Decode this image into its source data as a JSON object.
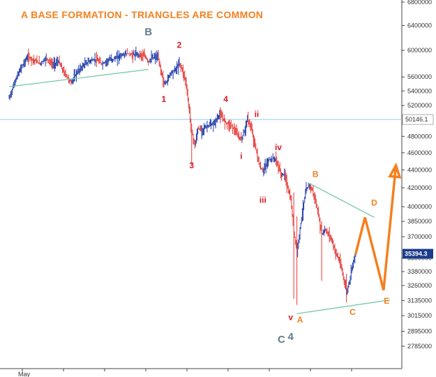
{
  "chart_data": {
    "type": "line",
    "title": "A BASE FORMATION - TRIANGLES ARE COMMON",
    "x_tick_label": "May",
    "y_scale": "log",
    "ylim": [
      27000,
      68000
    ],
    "y_ticks": [
      68000,
      64000,
      60000,
      56000,
      54000,
      52000,
      48000,
      46000,
      44000,
      42000,
      40000,
      38500,
      37000,
      35000,
      33800,
      32600,
      31350,
      30150,
      28950,
      27850
    ],
    "price_label": "50146.1",
    "price_label_value": 50146.1,
    "current_price_label": "35394.3",
    "current_price_value": 35394.3,
    "colors": {
      "title": "#f4801f",
      "up_bar": "#1f3aa8",
      "down_bar": "#e53935",
      "trendline": "#7ecbb0",
      "projection": "#f4801f",
      "red_label": "#d81b24",
      "orange_label": "#f4801f",
      "gray_label": "#607d8b",
      "price_line": "#90caf9",
      "current_price_bg": "#1a3c8c"
    },
    "price_path": [
      [
        0,
        53000
      ],
      [
        2,
        55500
      ],
      [
        4,
        57500
      ],
      [
        6,
        59000
      ],
      [
        8,
        58500
      ],
      [
        10,
        58000
      ],
      [
        12,
        58800
      ],
      [
        14,
        57800
      ],
      [
        16,
        58300
      ],
      [
        17,
        57200
      ],
      [
        18,
        56500
      ],
      [
        20,
        55200
      ],
      [
        22,
        56700
      ],
      [
        24,
        57700
      ],
      [
        26,
        58400
      ],
      [
        28,
        58600
      ],
      [
        30,
        57900
      ],
      [
        32,
        58500
      ],
      [
        34,
        58700
      ],
      [
        36,
        59200
      ],
      [
        38,
        59500
      ],
      [
        40,
        59300
      ],
      [
        42,
        59400
      ],
      [
        44,
        59000
      ],
      [
        45,
        58200
      ],
      [
        46,
        58800
      ],
      [
        48,
        59000
      ],
      [
        49,
        57000
      ],
      [
        50,
        55000
      ],
      [
        51,
        55400
      ],
      [
        52,
        56500
      ],
      [
        54,
        57200
      ],
      [
        55,
        58000
      ],
      [
        56,
        57000
      ],
      [
        57,
        55500
      ],
      [
        58,
        52000
      ],
      [
        59,
        48600
      ],
      [
        60,
        46800
      ],
      [
        61,
        49000
      ],
      [
        62,
        48800
      ],
      [
        64,
        49300
      ],
      [
        66,
        49500
      ],
      [
        68,
        50800
      ],
      [
        70,
        49800
      ],
      [
        72,
        49300
      ],
      [
        74,
        48000
      ],
      [
        75,
        47600
      ],
      [
        76,
        48700
      ],
      [
        77,
        50200
      ],
      [
        78,
        49300
      ],
      [
        80,
        46000
      ],
      [
        81,
        44300
      ],
      [
        82,
        43900
      ],
      [
        84,
        45200
      ],
      [
        86,
        45300
      ],
      [
        88,
        43400
      ],
      [
        89,
        43500
      ],
      [
        90,
        42000
      ],
      [
        91,
        40700
      ],
      [
        92,
        37500
      ],
      [
        93,
        35500
      ],
      [
        94,
        37800
      ],
      [
        95,
        40000
      ],
      [
        96,
        41800
      ],
      [
        97,
        42300
      ],
      [
        98,
        41700
      ],
      [
        99,
        40500
      ],
      [
        100,
        39000
      ],
      [
        101,
        37200
      ],
      [
        102,
        37700
      ],
      [
        104,
        36900
      ],
      [
        105,
        35900
      ],
      [
        106,
        35200
      ],
      [
        107,
        34500
      ],
      [
        108,
        33300
      ],
      [
        109,
        32000
      ],
      [
        110,
        33000
      ],
      [
        111,
        34600
      ],
      [
        112,
        35400
      ]
    ],
    "price_range": {
      "high": 60500,
      "low": 47200
    },
    "wick_extremes": [
      {
        "x": 59,
        "high": 48600,
        "low": 44500
      },
      {
        "x": 92,
        "high": 41500,
        "low": 31500
      },
      {
        "x": 93,
        "high": 39000,
        "low": 31000
      },
      {
        "x": 101,
        "high": 38500,
        "low": 33000
      },
      {
        "x": 109,
        "high": 33600,
        "low": 31200
      }
    ],
    "trendlines": [
      {
        "name": "base-support",
        "points": [
          [
            0,
            54600
          ],
          [
            45,
            57100
          ]
        ]
      },
      {
        "name": "triangle-upper",
        "points": [
          [
            97,
            42500
          ],
          [
            118,
            38900
          ]
        ]
      },
      {
        "name": "triangle-lower",
        "points": [
          [
            93,
            30300
          ],
          [
            123,
            31400
          ]
        ]
      }
    ],
    "projection": [
      [
        112,
        35400
      ],
      [
        115,
        38900
      ],
      [
        121,
        32200
      ],
      [
        125,
        44500
      ]
    ],
    "wave_labels": [
      {
        "text": "B",
        "x": 45,
        "y": 62400,
        "color": "gray"
      },
      {
        "text": "2",
        "x": 55,
        "y": 60400,
        "color": "red"
      },
      {
        "text": "1",
        "x": 50,
        "y": 52500,
        "color": "red"
      },
      {
        "text": "4",
        "x": 70,
        "y": 52500,
        "color": "red"
      },
      {
        "text": "ii",
        "x": 80,
        "y": 50500,
        "color": "red"
      },
      {
        "text": "3",
        "x": 59,
        "y": 44200,
        "color": "red"
      },
      {
        "text": "i",
        "x": 75,
        "y": 45300,
        "color": "red"
      },
      {
        "text": "iv",
        "x": 87,
        "y": 46300,
        "color": "red"
      },
      {
        "text": "iii",
        "x": 82,
        "y": 40400,
        "color": "red"
      },
      {
        "text": "B",
        "x": 99,
        "y": 43200,
        "color": "orange"
      },
      {
        "text": "D",
        "x": 118,
        "y": 40100,
        "color": "orange"
      },
      {
        "text": "v",
        "x": 91,
        "y": 29800,
        "color": "red"
      },
      {
        "text": "A",
        "x": 94,
        "y": 29600,
        "color": "orange"
      },
      {
        "text": "C",
        "x": 111,
        "y": 30200,
        "color": "orange"
      },
      {
        "text": "E",
        "x": 122,
        "y": 31100,
        "color": "orange"
      },
      {
        "text": "C",
        "x": 88,
        "y": 28100,
        "color": "gray"
      },
      {
        "text": "4",
        "x": 91,
        "y": 28300,
        "color": "gray"
      }
    ]
  }
}
